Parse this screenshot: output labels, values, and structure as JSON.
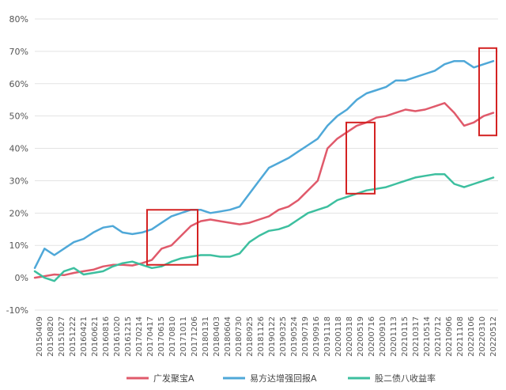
{
  "chart_data": {
    "type": "line",
    "title": "",
    "xlabel": "",
    "ylabel": "",
    "ylim": [
      -10,
      80
    ],
    "y_ticks": [
      "80%",
      "70%",
      "60%",
      "50%",
      "40%",
      "30%",
      "20%",
      "10%",
      "0%",
      "-10%"
    ],
    "y_tick_values": [
      80,
      70,
      60,
      50,
      40,
      30,
      20,
      10,
      0,
      -10
    ],
    "x_ticks": [
      "20150409",
      "20150820",
      "20151027",
      "20151222",
      "20160421",
      "20160621",
      "20160816",
      "20161020",
      "20161215",
      "20170214",
      "20170417",
      "20170615",
      "20170810",
      "20171011",
      "20171206",
      "20180131",
      "20180403",
      "20180604",
      "20180730",
      "20180925",
      "20181126",
      "20190122",
      "20190325",
      "20190524",
      "20190719",
      "20190916",
      "20191118",
      "20200118",
      "20200318",
      "20200519",
      "20200716",
      "20200910",
      "20201113",
      "20210115",
      "20210317",
      "20210514",
      "20210712",
      "20210906",
      "20211108",
      "20220106",
      "20220310",
      "20220512"
    ],
    "grid": true,
    "legend_position": "bottom",
    "series": [
      {
        "name": "广发聚宝A",
        "color": "#e05a6b",
        "values": [
          0,
          0.5,
          1,
          0.8,
          1.5,
          2,
          2.5,
          3.5,
          4,
          4,
          3.8,
          4.5,
          5.5,
          9,
          10,
          13,
          16,
          17.5,
          18,
          17.5,
          17,
          16.5,
          17,
          18,
          19,
          21,
          22,
          24,
          27,
          30,
          40,
          43,
          45,
          47,
          48,
          49.5,
          50,
          51,
          52,
          51.5,
          52,
          53,
          54,
          51,
          47,
          48,
          50,
          51
        ]
      },
      {
        "name": "易方达增强回报A",
        "color": "#4fa8d8",
        "values": [
          3,
          9,
          7,
          9,
          11,
          12,
          14,
          15.5,
          16,
          14,
          13.5,
          14,
          15,
          17,
          19,
          20,
          21,
          21,
          20,
          20.5,
          21,
          22,
          26,
          30,
          34,
          35.5,
          37,
          39,
          41,
          43,
          47,
          50,
          52,
          55,
          57,
          58,
          59,
          61,
          61,
          62,
          63,
          64,
          66,
          67,
          67,
          65,
          66,
          67
        ]
      },
      {
        "name": "股二债八收益率",
        "color": "#3dbf9f",
        "values": [
          2,
          0,
          -1,
          2,
          3,
          1,
          1.5,
          2,
          3.5,
          4.5,
          5,
          4,
          3,
          3.5,
          5,
          6,
          6.5,
          7,
          7,
          6.5,
          6.5,
          7.5,
          11,
          13,
          14.5,
          15,
          16,
          18,
          20,
          21,
          22,
          24,
          25,
          26,
          27,
          27.5,
          28,
          29,
          30,
          31,
          31.5,
          32,
          32,
          29,
          28,
          29,
          30,
          31
        ]
      }
    ],
    "highlight_boxes": [
      {
        "from": "20170417",
        "to": "20171206",
        "y_range": [
          4,
          21
        ]
      },
      {
        "from": "20200318",
        "to": "20200716",
        "y_range": [
          26,
          48
        ]
      },
      {
        "from": "20220310",
        "to": "20220512",
        "y_range": [
          44,
          71
        ]
      }
    ]
  }
}
